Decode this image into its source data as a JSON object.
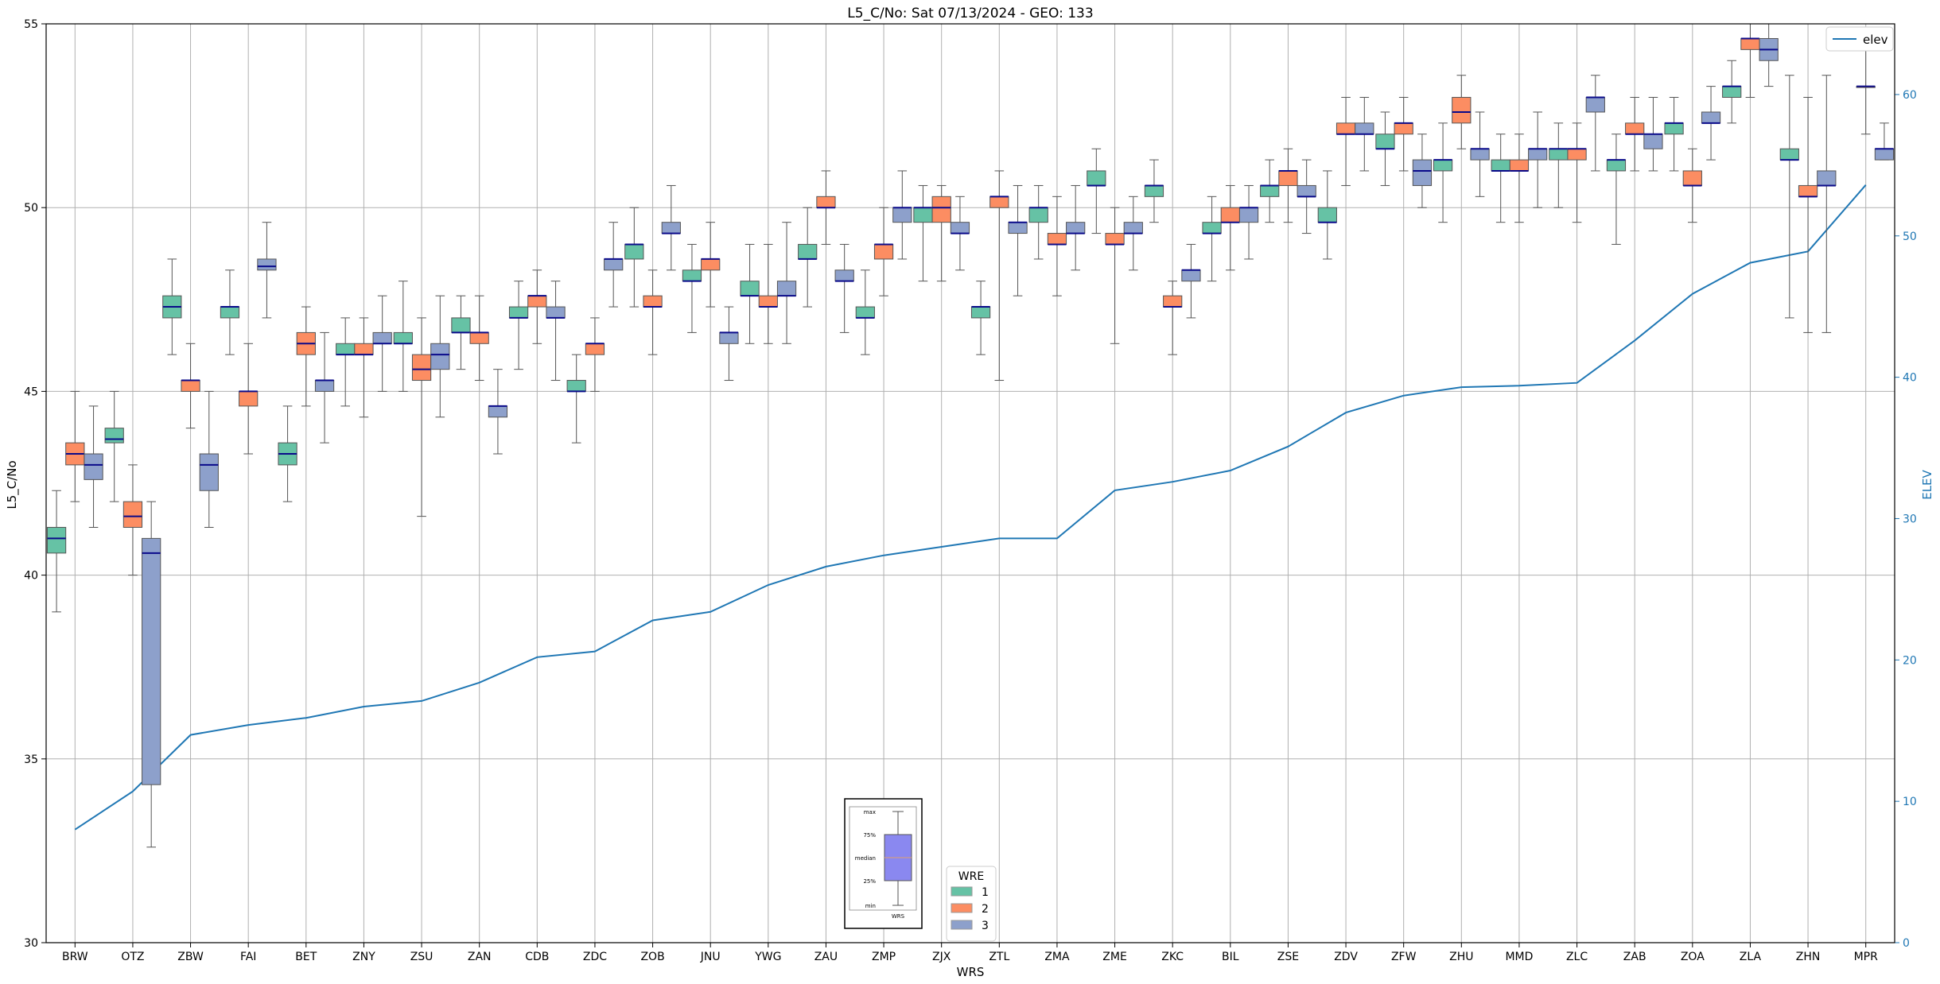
{
  "chart_data": {
    "type": "box",
    "title": "L5_C/No: Sat 07/13/2024 - GEO: 133",
    "xlabel": "WRS",
    "ylabel": "L5_C/No",
    "y2label": "ELEV",
    "ylim": [
      30,
      55
    ],
    "y2lim": [
      0,
      65
    ],
    "yticks": [
      "30",
      "35",
      "40",
      "45",
      "50",
      "55"
    ],
    "y2ticks": [
      "0",
      "10",
      "20",
      "30",
      "40",
      "50",
      "60"
    ],
    "grid": true,
    "categories": [
      "BRW",
      "OTZ",
      "ZBW",
      "FAI",
      "BET",
      "ZNY",
      "ZSU",
      "ZAN",
      "CDB",
      "ZDC",
      "ZOB",
      "JNU",
      "YWG",
      "ZAU",
      "ZMP",
      "ZJX",
      "ZTL",
      "ZMA",
      "ZME",
      "ZKC",
      "BIL",
      "ZSE",
      "ZDV",
      "ZFW",
      "ZHU",
      "MMD",
      "ZLC",
      "ZAB",
      "ZOA",
      "ZLA",
      "ZHN",
      "MPR"
    ],
    "legend_boxes": {
      "title": "WRE",
      "entries": [
        {
          "label": "1",
          "color": "#66c2a5"
        },
        {
          "label": "2",
          "color": "#fc8d62"
        },
        {
          "label": "3",
          "color": "#8da0cb"
        }
      ],
      "placement": "bottom-center"
    },
    "legend_line": {
      "label": "elev",
      "color": "#1f77b4",
      "placement": "top-right"
    },
    "elev_line": {
      "name": "elev",
      "values": [
        8,
        10.7,
        14.7,
        15.4,
        15.9,
        16.7,
        17.1,
        18.4,
        20.2,
        20.6,
        22.8,
        23.4,
        25.3,
        26.6,
        27.4,
        28.0,
        28.6,
        28.6,
        32.0,
        32.6,
        33.4,
        35.1,
        37.5,
        38.7,
        39.3,
        39.4,
        39.6,
        42.6,
        45.9,
        48.1,
        48.9,
        53.6
      ]
    },
    "boxes": [
      {
        "station": "BRW",
        "wre": 1,
        "min": 39.0,
        "q1": 40.6,
        "median": 41.0,
        "q3": 41.3,
        "max": 42.3
      },
      {
        "station": "BRW",
        "wre": 2,
        "min": 42.0,
        "q1": 43.0,
        "median": 43.3,
        "q3": 43.6,
        "max": 45.0
      },
      {
        "station": "BRW",
        "wre": 3,
        "min": 41.3,
        "q1": 42.6,
        "median": 43.0,
        "q3": 43.3,
        "max": 44.6
      },
      {
        "station": "OTZ",
        "wre": 1,
        "min": 42.0,
        "q1": 43.6,
        "median": 43.7,
        "q3": 44.0,
        "max": 45.0
      },
      {
        "station": "OTZ",
        "wre": 2,
        "min": 40.0,
        "q1": 41.3,
        "median": 41.6,
        "q3": 42.0,
        "max": 43.0
      },
      {
        "station": "OTZ",
        "wre": 3,
        "min": 32.6,
        "q1": 34.3,
        "median": 40.6,
        "q3": 41.0,
        "max": 42.0
      },
      {
        "station": "ZBW",
        "wre": 1,
        "min": 46.0,
        "q1": 47.0,
        "median": 47.3,
        "q3": 47.6,
        "max": 48.6
      },
      {
        "station": "ZBW",
        "wre": 2,
        "min": 44.0,
        "q1": 45.0,
        "median": 45.3,
        "q3": 45.3,
        "max": 46.3
      },
      {
        "station": "ZBW",
        "wre": 3,
        "min": 41.3,
        "q1": 42.3,
        "median": 43.0,
        "q3": 43.3,
        "max": 45.0
      },
      {
        "station": "FAI",
        "wre": 1,
        "min": 46.0,
        "q1": 47.0,
        "median": 47.3,
        "q3": 47.3,
        "max": 48.3
      },
      {
        "station": "FAI",
        "wre": 2,
        "min": 43.3,
        "q1": 44.6,
        "median": 45.0,
        "q3": 45.0,
        "max": 46.3
      },
      {
        "station": "FAI",
        "wre": 3,
        "min": 47.0,
        "q1": 48.3,
        "median": 48.4,
        "q3": 48.6,
        "max": 49.6
      },
      {
        "station": "BET",
        "wre": 1,
        "min": 42.0,
        "q1": 43.0,
        "median": 43.3,
        "q3": 43.6,
        "max": 44.6
      },
      {
        "station": "BET",
        "wre": 2,
        "min": 44.6,
        "q1": 46.0,
        "median": 46.3,
        "q3": 46.6,
        "max": 47.3
      },
      {
        "station": "BET",
        "wre": 3,
        "min": 43.6,
        "q1": 45.0,
        "median": 45.3,
        "q3": 45.3,
        "max": 46.6
      },
      {
        "station": "ZNY",
        "wre": 1,
        "min": 44.6,
        "q1": 46.0,
        "median": 46.0,
        "q3": 46.3,
        "max": 47.0
      },
      {
        "station": "ZNY",
        "wre": 2,
        "min": 44.3,
        "q1": 46.0,
        "median": 46.0,
        "q3": 46.3,
        "max": 47.0
      },
      {
        "station": "ZNY",
        "wre": 3,
        "min": 45.0,
        "q1": 46.3,
        "median": 46.3,
        "q3": 46.6,
        "max": 47.6
      },
      {
        "station": "ZSU",
        "wre": 1,
        "min": 45.0,
        "q1": 46.3,
        "median": 46.3,
        "q3": 46.6,
        "max": 48.0
      },
      {
        "station": "ZSU",
        "wre": 2,
        "min": 41.6,
        "q1": 45.3,
        "median": 45.6,
        "q3": 46.0,
        "max": 47.0
      },
      {
        "station": "ZSU",
        "wre": 3,
        "min": 44.3,
        "q1": 45.6,
        "median": 46.0,
        "q3": 46.3,
        "max": 47.6
      },
      {
        "station": "ZAN",
        "wre": 1,
        "min": 45.6,
        "q1": 46.6,
        "median": 46.6,
        "q3": 47.0,
        "max": 47.6
      },
      {
        "station": "ZAN",
        "wre": 2,
        "min": 45.3,
        "q1": 46.3,
        "median": 46.6,
        "q3": 46.6,
        "max": 47.6
      },
      {
        "station": "ZAN",
        "wre": 3,
        "min": 43.3,
        "q1": 44.3,
        "median": 44.6,
        "q3": 44.6,
        "max": 45.6
      },
      {
        "station": "CDB",
        "wre": 1,
        "min": 45.6,
        "q1": 47.0,
        "median": 47.0,
        "q3": 47.3,
        "max": 48.0
      },
      {
        "station": "CDB",
        "wre": 2,
        "min": 46.3,
        "q1": 47.3,
        "median": 47.6,
        "q3": 47.6,
        "max": 48.3
      },
      {
        "station": "CDB",
        "wre": 3,
        "min": 45.3,
        "q1": 47.0,
        "median": 47.0,
        "q3": 47.3,
        "max": 48.0
      },
      {
        "station": "ZDC",
        "wre": 1,
        "min": 43.6,
        "q1": 45.0,
        "median": 45.0,
        "q3": 45.3,
        "max": 46.0
      },
      {
        "station": "ZDC",
        "wre": 2,
        "min": 45.0,
        "q1": 46.0,
        "median": 46.3,
        "q3": 46.3,
        "max": 47.0
      },
      {
        "station": "ZDC",
        "wre": 3,
        "min": 47.3,
        "q1": 48.3,
        "median": 48.6,
        "q3": 48.6,
        "max": 49.6
      },
      {
        "station": "ZOB",
        "wre": 1,
        "min": 47.3,
        "q1": 48.6,
        "median": 49.0,
        "q3": 49.0,
        "max": 50.0
      },
      {
        "station": "ZOB",
        "wre": 2,
        "min": 46.0,
        "q1": 47.3,
        "median": 47.3,
        "q3": 47.6,
        "max": 48.3
      },
      {
        "station": "ZOB",
        "wre": 3,
        "min": 48.3,
        "q1": 49.3,
        "median": 49.3,
        "q3": 49.6,
        "max": 50.6
      },
      {
        "station": "JNU",
        "wre": 1,
        "min": 46.6,
        "q1": 48.0,
        "median": 48.0,
        "q3": 48.3,
        "max": 49.0
      },
      {
        "station": "JNU",
        "wre": 2,
        "min": 47.3,
        "q1": 48.3,
        "median": 48.6,
        "q3": 48.6,
        "max": 49.6
      },
      {
        "station": "JNU",
        "wre": 3,
        "min": 45.3,
        "q1": 46.3,
        "median": 46.6,
        "q3": 46.6,
        "max": 47.3
      },
      {
        "station": "YWG",
        "wre": 1,
        "min": 46.3,
        "q1": 47.6,
        "median": 47.6,
        "q3": 48.0,
        "max": 49.0
      },
      {
        "station": "YWG",
        "wre": 2,
        "min": 46.3,
        "q1": 47.3,
        "median": 47.3,
        "q3": 47.6,
        "max": 49.0
      },
      {
        "station": "YWG",
        "wre": 3,
        "min": 46.3,
        "q1": 47.6,
        "median": 47.6,
        "q3": 48.0,
        "max": 49.6
      },
      {
        "station": "ZAU",
        "wre": 1,
        "min": 47.3,
        "q1": 48.6,
        "median": 48.6,
        "q3": 49.0,
        "max": 50.0
      },
      {
        "station": "ZAU",
        "wre": 2,
        "min": 49.0,
        "q1": 50.0,
        "median": 50.0,
        "q3": 50.3,
        "max": 51.0
      },
      {
        "station": "ZAU",
        "wre": 3,
        "min": 46.6,
        "q1": 48.0,
        "median": 48.0,
        "q3": 48.3,
        "max": 49.0
      },
      {
        "station": "ZMP",
        "wre": 1,
        "min": 46.0,
        "q1": 47.0,
        "median": 47.0,
        "q3": 47.3,
        "max": 48.3
      },
      {
        "station": "ZMP",
        "wre": 2,
        "min": 47.6,
        "q1": 48.6,
        "median": 49.0,
        "q3": 49.0,
        "max": 50.0
      },
      {
        "station": "ZMP",
        "wre": 3,
        "min": 48.6,
        "q1": 49.6,
        "median": 50.0,
        "q3": 50.0,
        "max": 51.0
      },
      {
        "station": "ZJX",
        "wre": 1,
        "min": 48.0,
        "q1": 49.6,
        "median": 50.0,
        "q3": 50.0,
        "max": 50.6
      },
      {
        "station": "ZJX",
        "wre": 2,
        "min": 48.0,
        "q1": 49.6,
        "median": 50.0,
        "q3": 50.3,
        "max": 50.6
      },
      {
        "station": "ZJX",
        "wre": 3,
        "min": 48.3,
        "q1": 49.3,
        "median": 49.3,
        "q3": 49.6,
        "max": 50.3
      },
      {
        "station": "ZTL",
        "wre": 1,
        "min": 46.0,
        "q1": 47.0,
        "median": 47.3,
        "q3": 47.3,
        "max": 48.0
      },
      {
        "station": "ZTL",
        "wre": 2,
        "min": 45.3,
        "q1": 50.0,
        "median": 50.3,
        "q3": 50.3,
        "max": 51.0
      },
      {
        "station": "ZTL",
        "wre": 3,
        "min": 47.6,
        "q1": 49.3,
        "median": 49.6,
        "q3": 49.6,
        "max": 50.6
      },
      {
        "station": "ZMA",
        "wre": 1,
        "min": 48.6,
        "q1": 49.6,
        "median": 50.0,
        "q3": 50.0,
        "max": 50.6
      },
      {
        "station": "ZMA",
        "wre": 2,
        "min": 47.6,
        "q1": 49.0,
        "median": 49.0,
        "q3": 49.3,
        "max": 50.3
      },
      {
        "station": "ZMA",
        "wre": 3,
        "min": 48.3,
        "q1": 49.3,
        "median": 49.3,
        "q3": 49.6,
        "max": 50.6
      },
      {
        "station": "ZME",
        "wre": 1,
        "min": 49.3,
        "q1": 50.6,
        "median": 50.6,
        "q3": 51.0,
        "max": 51.6
      },
      {
        "station": "ZME",
        "wre": 2,
        "min": 46.3,
        "q1": 49.0,
        "median": 49.0,
        "q3": 49.3,
        "max": 50.0
      },
      {
        "station": "ZME",
        "wre": 3,
        "min": 48.3,
        "q1": 49.3,
        "median": 49.3,
        "q3": 49.6,
        "max": 50.3
      },
      {
        "station": "ZKC",
        "wre": 1,
        "min": 49.6,
        "q1": 50.3,
        "median": 50.6,
        "q3": 50.6,
        "max": 51.3
      },
      {
        "station": "ZKC",
        "wre": 2,
        "min": 46.0,
        "q1": 47.3,
        "median": 47.3,
        "q3": 47.6,
        "max": 48.0
      },
      {
        "station": "ZKC",
        "wre": 3,
        "min": 47.0,
        "q1": 48.0,
        "median": 48.3,
        "q3": 48.3,
        "max": 49.0
      },
      {
        "station": "BIL",
        "wre": 1,
        "min": 48.0,
        "q1": 49.3,
        "median": 49.3,
        "q3": 49.6,
        "max": 50.3
      },
      {
        "station": "BIL",
        "wre": 2,
        "min": 48.3,
        "q1": 49.6,
        "median": 49.6,
        "q3": 50.0,
        "max": 50.6
      },
      {
        "station": "BIL",
        "wre": 3,
        "min": 48.6,
        "q1": 49.6,
        "median": 50.0,
        "q3": 50.0,
        "max": 50.6
      },
      {
        "station": "ZSE",
        "wre": 1,
        "min": 49.6,
        "q1": 50.3,
        "median": 50.6,
        "q3": 50.6,
        "max": 51.3
      },
      {
        "station": "ZSE",
        "wre": 2,
        "min": 49.6,
        "q1": 50.6,
        "median": 51.0,
        "q3": 51.0,
        "max": 51.6
      },
      {
        "station": "ZSE",
        "wre": 3,
        "min": 49.3,
        "q1": 50.3,
        "median": 50.3,
        "q3": 50.6,
        "max": 51.3
      },
      {
        "station": "ZDV",
        "wre": 1,
        "min": 48.6,
        "q1": 49.6,
        "median": 49.6,
        "q3": 50.0,
        "max": 51.0
      },
      {
        "station": "ZDV",
        "wre": 2,
        "min": 50.6,
        "q1": 52.0,
        "median": 52.0,
        "q3": 52.3,
        "max": 53.0
      },
      {
        "station": "ZDV",
        "wre": 3,
        "min": 51.0,
        "q1": 52.0,
        "median": 52.0,
        "q3": 52.3,
        "max": 53.0
      },
      {
        "station": "ZFW",
        "wre": 1,
        "min": 50.6,
        "q1": 51.6,
        "median": 51.6,
        "q3": 52.0,
        "max": 52.6
      },
      {
        "station": "ZFW",
        "wre": 2,
        "min": 51.0,
        "q1": 52.0,
        "median": 52.3,
        "q3": 52.3,
        "max": 53.0
      },
      {
        "station": "ZFW",
        "wre": 3,
        "min": 50.0,
        "q1": 50.6,
        "median": 51.0,
        "q3": 51.3,
        "max": 52.0
      },
      {
        "station": "ZHU",
        "wre": 1,
        "min": 49.6,
        "q1": 51.0,
        "median": 51.3,
        "q3": 51.3,
        "max": 52.3
      },
      {
        "station": "ZHU",
        "wre": 2,
        "min": 51.6,
        "q1": 52.3,
        "median": 52.6,
        "q3": 53.0,
        "max": 53.6
      },
      {
        "station": "ZHU",
        "wre": 3,
        "min": 50.3,
        "q1": 51.3,
        "median": 51.6,
        "q3": 51.6,
        "max": 52.6
      },
      {
        "station": "MMD",
        "wre": 1,
        "min": 49.6,
        "q1": 51.0,
        "median": 51.0,
        "q3": 51.3,
        "max": 52.0
      },
      {
        "station": "MMD",
        "wre": 2,
        "min": 49.6,
        "q1": 51.0,
        "median": 51.0,
        "q3": 51.3,
        "max": 52.0
      },
      {
        "station": "MMD",
        "wre": 3,
        "min": 50.0,
        "q1": 51.3,
        "median": 51.6,
        "q3": 51.6,
        "max": 52.6
      },
      {
        "station": "ZLC",
        "wre": 1,
        "min": 50.0,
        "q1": 51.3,
        "median": 51.6,
        "q3": 51.6,
        "max": 52.3
      },
      {
        "station": "ZLC",
        "wre": 2,
        "min": 49.6,
        "q1": 51.3,
        "median": 51.6,
        "q3": 51.6,
        "max": 52.3
      },
      {
        "station": "ZLC",
        "wre": 3,
        "min": 51.0,
        "q1": 52.6,
        "median": 53.0,
        "q3": 53.0,
        "max": 53.6
      },
      {
        "station": "ZAB",
        "wre": 1,
        "min": 49.0,
        "q1": 51.0,
        "median": 51.3,
        "q3": 51.3,
        "max": 52.0
      },
      {
        "station": "ZAB",
        "wre": 2,
        "min": 51.0,
        "q1": 52.0,
        "median": 52.0,
        "q3": 52.3,
        "max": 53.0
      },
      {
        "station": "ZAB",
        "wre": 3,
        "min": 51.0,
        "q1": 51.6,
        "median": 52.0,
        "q3": 52.0,
        "max": 53.0
      },
      {
        "station": "ZOA",
        "wre": 1,
        "min": 51.0,
        "q1": 52.0,
        "median": 52.3,
        "q3": 52.3,
        "max": 53.0
      },
      {
        "station": "ZOA",
        "wre": 2,
        "min": 49.6,
        "q1": 50.6,
        "median": 50.6,
        "q3": 51.0,
        "max": 51.6
      },
      {
        "station": "ZOA",
        "wre": 3,
        "min": 51.3,
        "q1": 52.3,
        "median": 52.3,
        "q3": 52.6,
        "max": 53.3
      },
      {
        "station": "ZLA",
        "wre": 1,
        "min": 52.3,
        "q1": 53.0,
        "median": 53.3,
        "q3": 53.3,
        "max": 54.0
      },
      {
        "station": "ZLA",
        "wre": 2,
        "min": 53.0,
        "q1": 54.3,
        "median": 54.6,
        "q3": 54.6,
        "max": 55.0
      },
      {
        "station": "ZLA",
        "wre": 3,
        "min": 53.3,
        "q1": 54.0,
        "median": 54.3,
        "q3": 54.6,
        "max": 55.0
      },
      {
        "station": "ZHN",
        "wre": 1,
        "min": 47.0,
        "q1": 51.3,
        "median": 51.3,
        "q3": 51.6,
        "max": 53.6
      },
      {
        "station": "ZHN",
        "wre": 2,
        "min": 46.6,
        "q1": 50.3,
        "median": 50.3,
        "q3": 50.6,
        "max": 53.0
      },
      {
        "station": "ZHN",
        "wre": 3,
        "min": 46.6,
        "q1": 50.6,
        "median": 50.6,
        "q3": 51.0,
        "max": 53.6
      },
      {
        "station": "MPR",
        "wre": 3,
        "min": 51.3,
        "q1": 51.3,
        "median": 51.6,
        "q3": 51.6,
        "max": 52.3
      },
      {
        "station": "MPR",
        "wre": 2,
        "min": 52.0,
        "q1": 53.3,
        "median": 53.3,
        "q3": 53.3,
        "max": 54.6
      }
    ],
    "inset_key": {
      "labels": [
        "max",
        "75%",
        "median",
        "25%",
        "min"
      ],
      "footer": "WRS"
    }
  }
}
